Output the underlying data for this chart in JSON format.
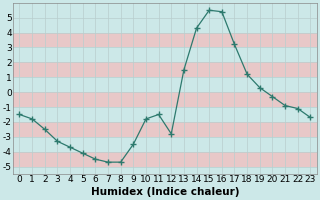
{
  "x": [
    0,
    1,
    2,
    3,
    4,
    5,
    6,
    7,
    8,
    9,
    10,
    11,
    12,
    13,
    14,
    15,
    16,
    17,
    18,
    19,
    20,
    21,
    22,
    23
  ],
  "y": [
    -1.5,
    -1.8,
    -2.5,
    -3.3,
    -3.7,
    -4.1,
    -4.5,
    -4.7,
    -4.7,
    -3.5,
    -1.8,
    -1.5,
    -2.8,
    1.5,
    4.3,
    5.5,
    5.4,
    3.2,
    1.2,
    0.3,
    -0.3,
    -0.9,
    -1.1,
    -1.7
  ],
  "line_color": "#2d7a6e",
  "marker": "+",
  "markersize": 4,
  "linewidth": 0.9,
  "bg_color": "#cce8e8",
  "grid_color_minor": "#e8c8c8",
  "grid_color_major": "#b8c8c8",
  "xlabel": "Humidex (Indice chaleur)",
  "xlim": [
    -0.5,
    23.5
  ],
  "ylim": [
    -5.5,
    6.0
  ],
  "yticks": [
    -5,
    -4,
    -3,
    -2,
    -1,
    0,
    1,
    2,
    3,
    4,
    5
  ],
  "xticks": [
    0,
    1,
    2,
    3,
    4,
    5,
    6,
    7,
    8,
    9,
    10,
    11,
    12,
    13,
    14,
    15,
    16,
    17,
    18,
    19,
    20,
    21,
    22,
    23
  ],
  "xlabel_fontsize": 7.5,
  "tick_fontsize": 6.5
}
